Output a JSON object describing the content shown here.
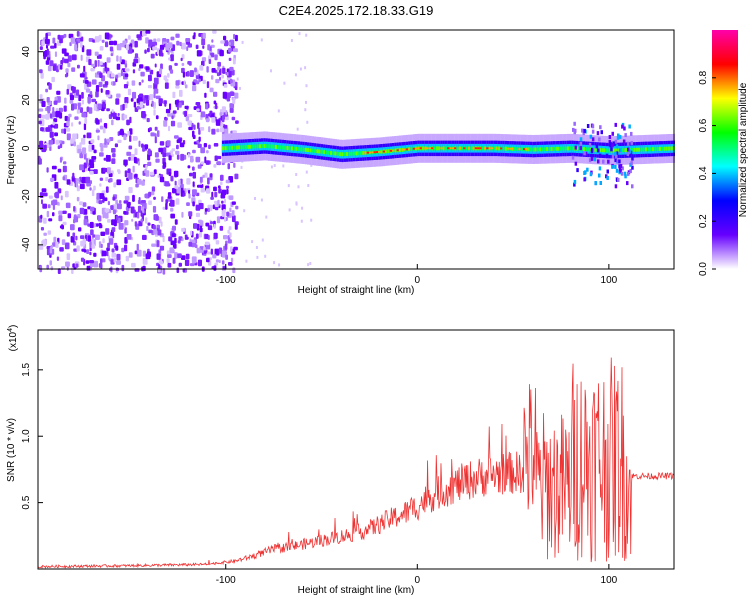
{
  "title": "C2E4.2025.172.18.33.G19",
  "chart_data": [
    {
      "type": "heatmap",
      "xlabel": "Height of straight line (km)",
      "ylabel": "Frequency (Hz)",
      "xlim": [
        -198,
        134
      ],
      "ylim": [
        -50,
        49
      ],
      "xticks": [
        -100,
        0,
        100
      ],
      "yticks": [
        -40,
        -20,
        0,
        20,
        40
      ],
      "ridge": [
        [
          -102,
          0
        ],
        [
          -80,
          1
        ],
        [
          -60,
          -0.5
        ],
        [
          -40,
          -2.5
        ],
        [
          -20,
          -1.5
        ],
        [
          0,
          0
        ],
        [
          20,
          0
        ],
        [
          40,
          0
        ],
        [
          60,
          -0.5
        ],
        [
          80,
          0
        ],
        [
          100,
          -1
        ],
        [
          134,
          0
        ]
      ],
      "colorbar": {
        "label": "Normalized spectral amplitude",
        "range": [
          0,
          1
        ],
        "ticks": [
          "0.0",
          "0.2",
          "0.4",
          "0.6",
          "0.8"
        ],
        "colors": [
          "#ffffff",
          "#6600ff",
          "#0000ff",
          "#00ffff",
          "#00ff00",
          "#ffff00",
          "#ff0000",
          "#ff00aa"
        ]
      }
    },
    {
      "type": "line",
      "xlabel": "Height of straight line (km)",
      "ylabel": "SNR (10 * v/v)",
      "y_multiplier": "(x10",
      "y_multiplier_exp": "4",
      "xlim": [
        -198,
        134
      ],
      "ylim": [
        0,
        18000
      ],
      "xticks": [
        -100,
        0,
        100
      ],
      "yticks": [
        "0.5",
        "1.0",
        "1.5"
      ],
      "color": "#ee3333",
      "series": [
        {
          "x": [
            -198,
            -150,
            -110,
            -95,
            -85,
            -75,
            -65,
            -55,
            -45,
            -35,
            -25,
            -15,
            -5,
            0,
            5,
            15,
            25,
            35,
            45,
            55,
            58,
            62,
            70,
            80,
            90,
            100,
            105,
            110,
            112,
            120,
            134
          ],
          "y": [
            180,
            250,
            350,
            600,
            1000,
            1500,
            1700,
            2000,
            2300,
            2600,
            3000,
            3700,
            4300,
            4700,
            5300,
            6000,
            6600,
            7000,
            7200,
            7300,
            7700,
            7000,
            7000,
            7000,
            7000,
            7000,
            7000,
            7000,
            7000,
            7000,
            7000
          ]
        }
      ]
    }
  ]
}
